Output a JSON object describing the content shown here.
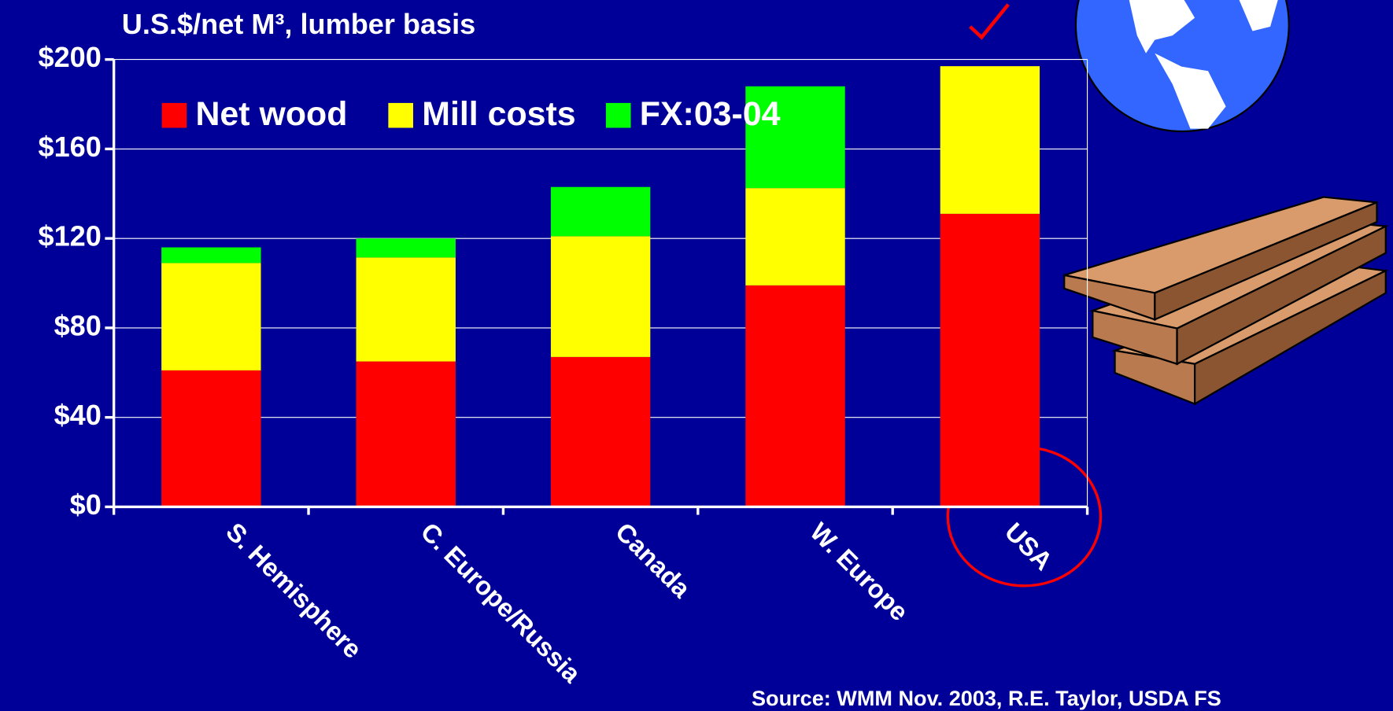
{
  "chart_data": {
    "type": "stacked_bar",
    "title": "U.S.$/net M³, lumber basis",
    "source": "Source: WMM Nov. 2003, R.E. Taylor, USDA FS",
    "categories": [
      "S. Hemisphere",
      "C. Europe/Russia",
      "Canada",
      "W. Europe",
      "USA"
    ],
    "series": [
      {
        "name": "Net wood",
        "color": "#ff0000",
        "values": [
          61,
          65,
          67,
          99,
          131
        ]
      },
      {
        "name": "Mill costs",
        "color": "#ffff00",
        "values": [
          48,
          46.5,
          54,
          43.5,
          66
        ]
      },
      {
        "name": "FX:03-04",
        "color": "#00ff00",
        "values": [
          7,
          8.5,
          22,
          45.5,
          0
        ]
      }
    ],
    "ylim": [
      0,
      200
    ],
    "yticks": [
      {
        "value": 0,
        "label": "$0"
      },
      {
        "value": 40,
        "label": "$40"
      },
      {
        "value": 80,
        "label": "$80"
      },
      {
        "value": 120,
        "label": "$120"
      },
      {
        "value": 160,
        "label": "$160"
      },
      {
        "value": 200,
        "label": "$200"
      }
    ],
    "grid": true,
    "legend": "top-left"
  }
}
